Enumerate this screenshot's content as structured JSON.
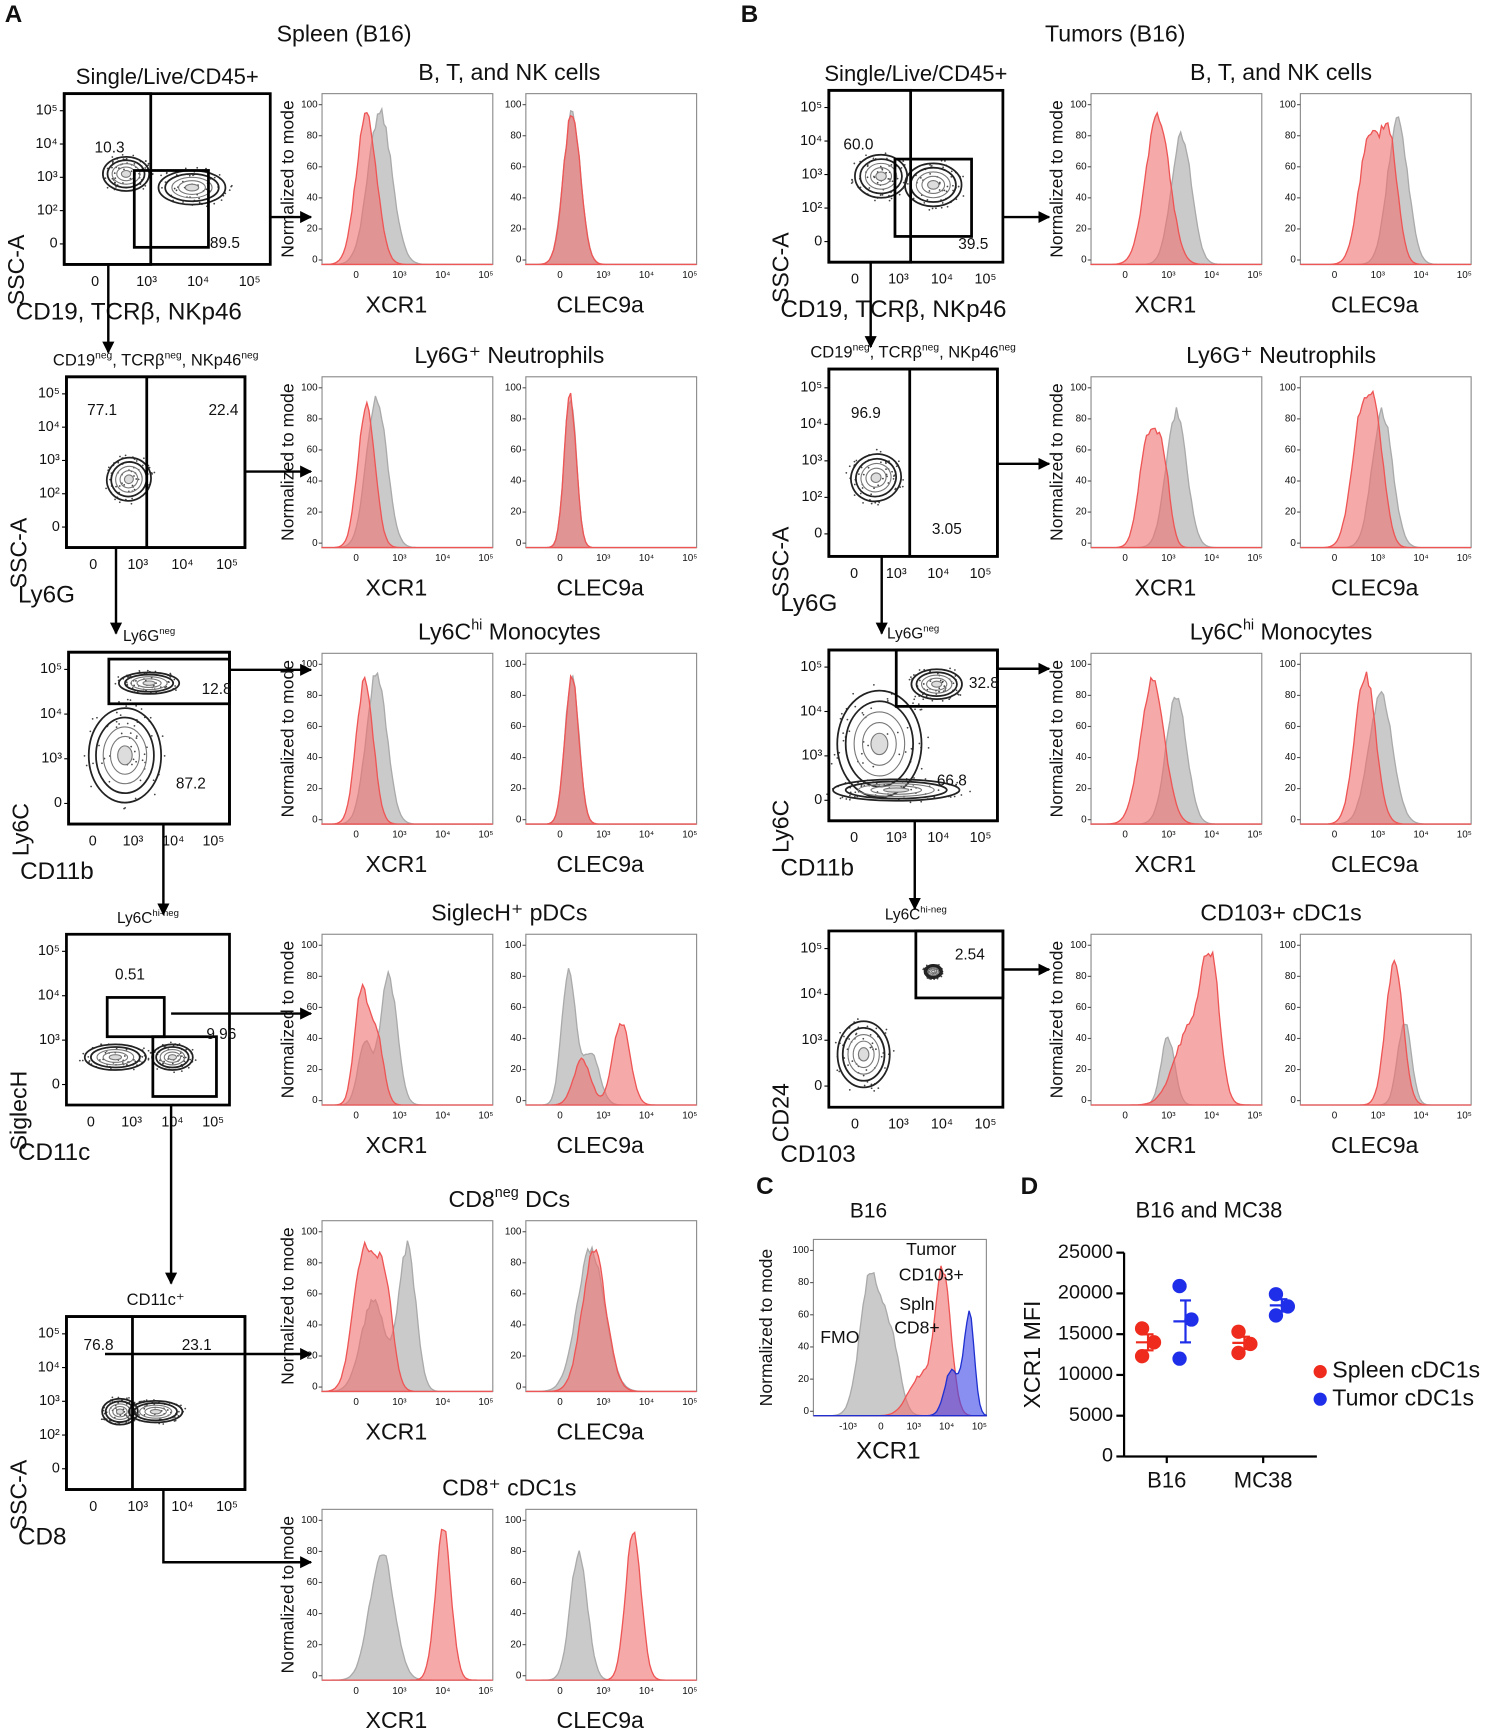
{
  "panel_a": {
    "label": "A",
    "title": "Spleen (B16)",
    "gates": [
      {
        "title": [
          "Single/Live/CD45+"
        ],
        "ylabel": "SSC-A",
        "xlabel": "CD19, TCRβ, NKp46",
        "yticks": [
          "10⁵",
          "10⁴",
          "10³",
          "10²",
          "0"
        ],
        "xticks": [
          "0",
          "10³",
          "10⁴",
          "10⁵"
        ],
        "numbers": [
          "10.3",
          "89.5"
        ]
      },
      {
        "title": [
          "CD19",
          "neg",
          ", TCRβ",
          "neg",
          ", NKp46",
          "neg"
        ],
        "ylabel": "SSC-A",
        "xlabel": "Ly6G",
        "yticks": [
          "10⁵",
          "10⁴",
          "10³",
          "10²",
          "0"
        ],
        "xticks": [
          "0",
          "10³",
          "10⁴",
          "10⁵"
        ],
        "numbers": [
          "77.1",
          "22.4"
        ]
      },
      {
        "title": [
          "Ly6G",
          "neg"
        ],
        "ylabel": "Ly6C",
        "xlabel": "CD11b",
        "yticks": [
          "10⁵",
          "10⁴",
          "10³",
          "0"
        ],
        "xticks": [
          "0",
          "10³",
          "10⁴",
          "10⁵"
        ],
        "numbers": [
          "12.8",
          "87.2"
        ]
      },
      {
        "title": [
          "Ly6C",
          "hi-neg"
        ],
        "ylabel": "SiglecH",
        "xlabel": "CD11c",
        "yticks": [
          "10⁵",
          "10⁴",
          "10³",
          "0"
        ],
        "xticks": [
          "0",
          "10³",
          "10⁴",
          "10⁵"
        ],
        "numbers": [
          "0.51",
          "9.96"
        ]
      },
      {
        "title": [
          "CD11c⁺"
        ],
        "ylabel": "SSC-A",
        "xlabel": "CD8",
        "yticks": [
          "10⁵",
          "10⁴",
          "10³",
          "10²",
          "0"
        ],
        "xticks": [
          "0",
          "10³",
          "10⁴",
          "10⁵"
        ],
        "numbers": [
          "76.8",
          "23.1"
        ]
      }
    ],
    "histograms": [
      {
        "title": [
          "B, T, and NK cells"
        ]
      },
      {
        "title": [
          "Ly6G⁺ Neutrophils"
        ]
      },
      {
        "title": [
          "Ly6C",
          "hi",
          " Monocytes"
        ]
      },
      {
        "title": [
          "SiglecH⁺ pDCs"
        ]
      },
      {
        "title": [
          "CD8",
          "neg",
          "  DCs"
        ]
      },
      {
        "title": [
          "CD8⁺ cDC1s"
        ]
      }
    ],
    "hist_ylabel": "Normalized to mode",
    "hist_xlabels": [
      "XCR1",
      "CLEC9a"
    ],
    "hist_yticks": [
      0,
      20,
      40,
      60,
      80,
      100
    ],
    "hist_xticks": [
      "0",
      "10³",
      "10⁴",
      "10⁵"
    ]
  },
  "panel_b": {
    "label": "B",
    "title": "Tumors (B16)",
    "gates": [
      {
        "title": [
          "Single/Live/CD45+"
        ],
        "ylabel": "SSC-A",
        "xlabel": "CD19, TCRβ, NKp46",
        "yticks": [
          "10⁵",
          "10⁴",
          "10³",
          "10²",
          "0"
        ],
        "xticks": [
          "0",
          "10³",
          "10⁴",
          "10⁵"
        ],
        "numbers": [
          "60.0",
          "39.5"
        ]
      },
      {
        "title": [
          "CD19",
          "neg",
          ", TCRβ",
          "neg",
          ", NKp46",
          "neg"
        ],
        "ylabel": "SSC-A",
        "xlabel": "Ly6G",
        "yticks": [
          "10⁵",
          "10⁴",
          "10³",
          "10²",
          "0"
        ],
        "xticks": [
          "0",
          "10³",
          "10⁴",
          "10⁵"
        ],
        "numbers": [
          "96.9",
          "3.05"
        ]
      },
      {
        "title": [
          "Ly6G",
          "neg"
        ],
        "ylabel": "Ly6C",
        "xlabel": "CD11b",
        "yticks": [
          "10⁵",
          "10⁴",
          "10³",
          "0"
        ],
        "xticks": [
          "0",
          "10³",
          "10⁴",
          "10⁵"
        ],
        "numbers": [
          "32.8",
          "66.8"
        ]
      },
      {
        "title": [
          "Ly6C",
          "hi-neg"
        ],
        "ylabel": "CD24",
        "xlabel": "CD103",
        "yticks": [
          "10⁵",
          "10⁴",
          "10³",
          "0"
        ],
        "xticks": [
          "0",
          "10³",
          "10⁴",
          "10⁵"
        ],
        "numbers": [
          "2.54"
        ]
      }
    ],
    "histograms": [
      {
        "title": [
          "B, T, and NK cells"
        ]
      },
      {
        "title": [
          "Ly6G⁺ Neutrophils"
        ]
      },
      {
        "title": [
          "Ly6C",
          "hi",
          " Monocytes"
        ]
      },
      {
        "title": [
          "CD103+ cDC1s"
        ]
      }
    ],
    "hist_ylabel": "Normalized to mode",
    "hist_xlabels": [
      "XCR1",
      "CLEC9a"
    ],
    "hist_yticks": [
      0,
      20,
      40,
      60,
      80,
      100
    ],
    "hist_xticks": [
      "0",
      "10³",
      "10⁴",
      "10⁵"
    ]
  },
  "panel_c": {
    "label": "C",
    "title": "B16",
    "ylabel": "Normalized to mode",
    "xlabel": "XCR1",
    "yticks": [
      0,
      20,
      40,
      60,
      80,
      100
    ],
    "xticks": [
      "-10³",
      "0",
      "10³",
      "10⁴",
      "10⁵"
    ],
    "annotations": [
      "Tumor",
      "CD103+",
      "Spln",
      "CD8+",
      "FMO"
    ]
  },
  "chart_data": {
    "type": "dot",
    "label": "D",
    "title": "B16 and MC38",
    "ylabel": "XCR1 MFI",
    "categories": [
      "B16",
      "MC38"
    ],
    "series": [
      {
        "name": "Spleen cDC1s",
        "color": "#ee2b1c",
        "values": [
          [
            15700,
            14000,
            12300
          ],
          [
            15300,
            13800,
            12700
          ]
        ]
      },
      {
        "name": "Tumor cDC1s",
        "color": "#1f2ee8",
        "values": [
          [
            20900,
            16800,
            12000
          ],
          [
            19900,
            18400,
            17300
          ]
        ]
      }
    ],
    "ylim": [
      0,
      25000
    ],
    "yticks": [
      0,
      5000,
      10000,
      15000,
      20000,
      25000
    ],
    "legend": "right"
  }
}
